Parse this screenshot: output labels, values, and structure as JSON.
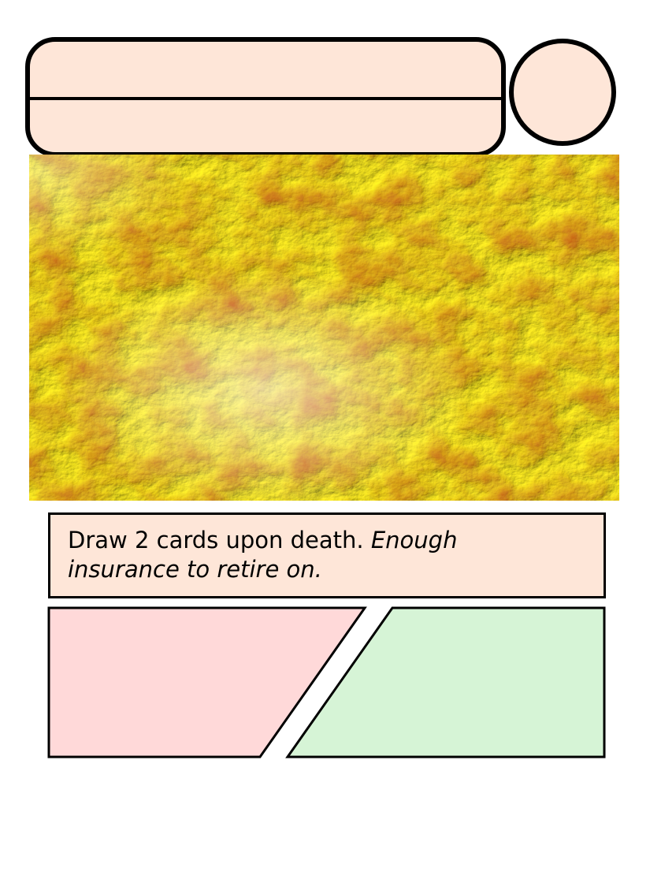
{
  "card": {
    "name": "",
    "subtitle": "",
    "cost": "",
    "ability": "Draw 2 cards upon death.",
    "flavor": "Enough insurance to retire on.",
    "attack": "",
    "health": ""
  },
  "colors": {
    "panel_fill": "#fee6d8",
    "attack_fill": "#ffd9d9",
    "health_fill": "#d6f4d6",
    "outline": "#000000",
    "art_base": "#c8561e",
    "art_highlight": "#ffee22"
  },
  "art": {
    "description": "gold-ore-texture"
  }
}
